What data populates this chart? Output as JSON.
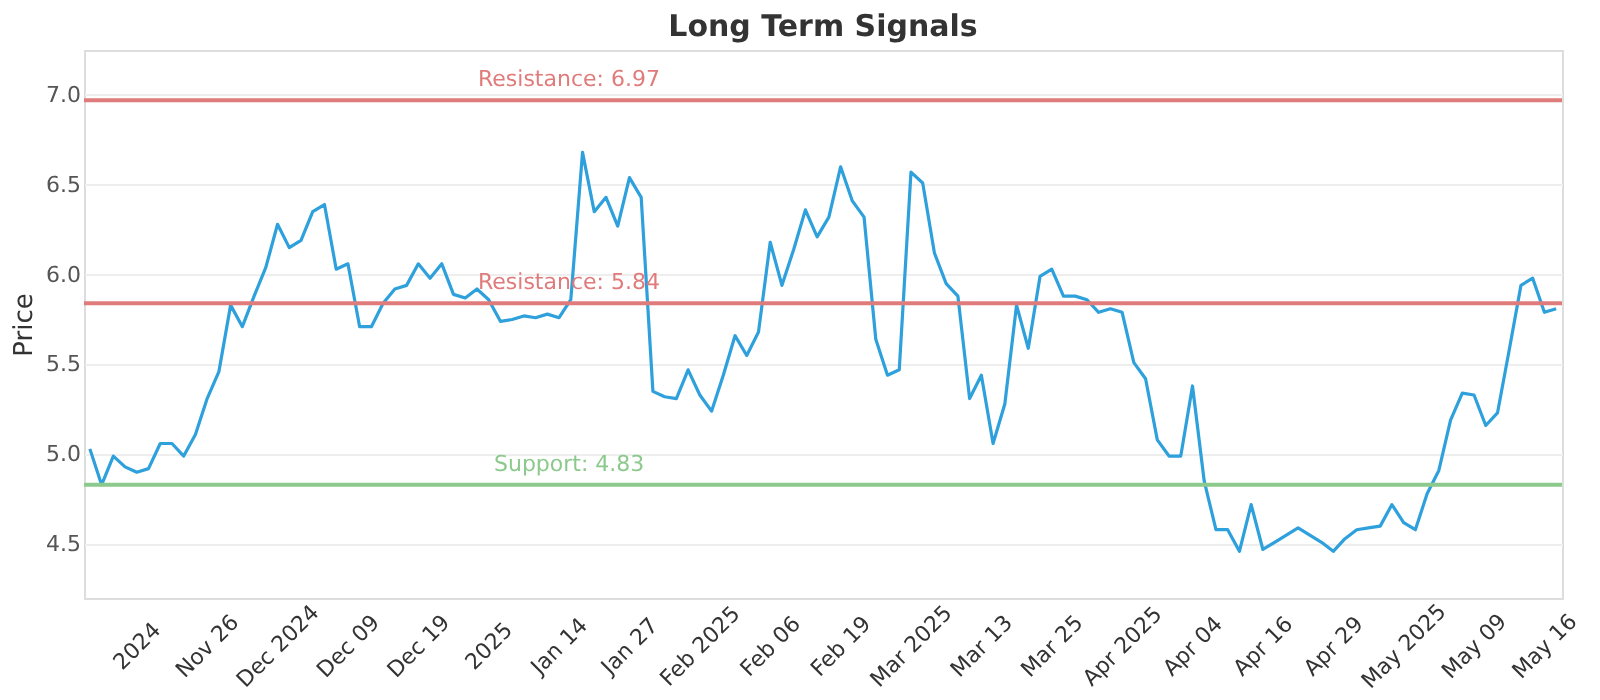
{
  "chart_data": {
    "type": "line",
    "title": "Long Term Signals",
    "ylabel": "Price",
    "categories": [
      null,
      null,
      null,
      null,
      "2024",
      null,
      null,
      null,
      null,
      null,
      "Nov 26",
      null,
      null,
      null,
      null,
      null,
      "Dec 2024",
      null,
      null,
      null,
      null,
      null,
      "Dec 09",
      null,
      null,
      null,
      null,
      null,
      "Dec 19",
      null,
      null,
      null,
      null,
      null,
      "2025",
      null,
      null,
      null,
      null,
      null,
      "Jan 14",
      null,
      null,
      null,
      null,
      null,
      "Jan 27",
      null,
      null,
      null,
      null,
      null,
      "Feb 2025",
      null,
      null,
      null,
      null,
      null,
      "Feb 06",
      null,
      null,
      null,
      null,
      null,
      "Feb 19",
      null,
      null,
      null,
      null,
      null,
      "Mar 2025",
      null,
      null,
      null,
      null,
      null,
      "Mar 13",
      null,
      null,
      null,
      null,
      null,
      "Mar 25",
      null,
      null,
      null,
      null,
      null,
      "Apr 2025",
      null,
      null,
      null,
      null,
      null,
      "Apr 04",
      null,
      null,
      null,
      null,
      null,
      "Apr 16",
      null,
      null,
      null,
      null,
      null,
      "Apr 29",
      null,
      null,
      null,
      null,
      null,
      "May 2025",
      null,
      null,
      null,
      null,
      null,
      "May 09",
      null,
      null,
      null,
      null,
      null,
      "May 16",
      null
    ],
    "series": [
      {
        "color": "#2ea0dc",
        "values": [
          5.03,
          4.83,
          4.99,
          4.93,
          4.9,
          4.92,
          5.06,
          5.06,
          4.99,
          5.11,
          5.31,
          5.46,
          5.83,
          5.71,
          5.88,
          6.04,
          6.28,
          6.15,
          6.19,
          6.35,
          6.39,
          6.03,
          6.06,
          5.71,
          5.71,
          5.84,
          5.92,
          5.94,
          6.06,
          5.98,
          6.06,
          5.89,
          5.87,
          5.92,
          5.86,
          5.74,
          5.75,
          5.77,
          5.76,
          5.78,
          5.76,
          5.86,
          6.68,
          6.35,
          6.43,
          6.27,
          6.54,
          6.43,
          5.35,
          5.32,
          5.31,
          5.47,
          5.33,
          5.24,
          5.44,
          5.66,
          5.55,
          5.68,
          6.18,
          5.94,
          6.14,
          6.36,
          6.21,
          6.32,
          6.6,
          6.41,
          6.32,
          5.64,
          5.44,
          5.47,
          6.57,
          6.51,
          6.12,
          5.95,
          5.88,
          5.31,
          5.44,
          5.06,
          5.28,
          5.83,
          5.59,
          5.99,
          6.03,
          5.88,
          5.88,
          5.86,
          5.79,
          5.81,
          5.79,
          5.51,
          5.42,
          5.08,
          4.99,
          4.99,
          5.38,
          4.85,
          4.58,
          4.58,
          4.46,
          4.72,
          4.47,
          4.51,
          4.55,
          4.59,
          4.55,
          4.51,
          4.46,
          4.53,
          4.58,
          4.59,
          4.6,
          4.72,
          4.62,
          4.58,
          4.78,
          4.91,
          5.19,
          5.34,
          5.33,
          5.16,
          5.23,
          5.58,
          5.94,
          5.98,
          5.79,
          5.81
        ]
      }
    ],
    "ylim": [
      4.2,
      7.25
    ],
    "yticks": [
      4.5,
      {
        "value": 5,
        "label": "5.0"
      },
      5.5,
      {
        "value": 6,
        "label": "6.0"
      },
      6.5,
      {
        "value": 7,
        "label": "7.0"
      }
    ],
    "ref_lines": [
      {
        "axis": "y",
        "value": 6.97,
        "label": "Resistance: 6.97",
        "color": "#e07b7b"
      },
      {
        "axis": "y",
        "value": 5.84,
        "label": "Resistance: 5.84",
        "color": "#e07b7b"
      },
      {
        "axis": "y",
        "value": 4.83,
        "label": "Support: 4.83",
        "color": "#8cc98c"
      }
    ],
    "grid": "y",
    "marker": "none",
    "line_style": "solid"
  }
}
